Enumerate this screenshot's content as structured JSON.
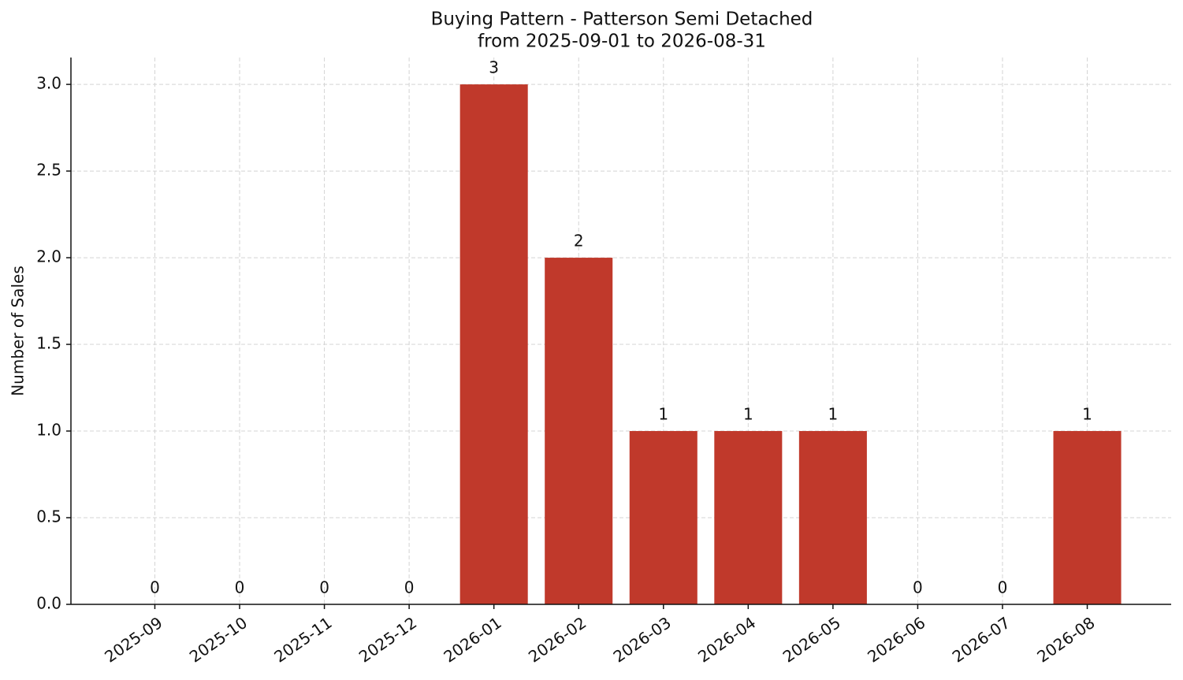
{
  "chart_data": {
    "type": "bar",
    "title": "Buying Pattern - Patterson Semi Detached",
    "subtitle": "from 2025-09-01 to 2026-08-31",
    "y_label": "Number of Sales",
    "categories": [
      "2025-09",
      "2025-10",
      "2025-11",
      "2025-12",
      "2026-01",
      "2026-02",
      "2026-03",
      "2026-04",
      "2026-05",
      "2026-06",
      "2026-07",
      "2026-08"
    ],
    "values": [
      0,
      0,
      0,
      0,
      3,
      2,
      1,
      1,
      1,
      0,
      0,
      1
    ],
    "color": "#c0392b",
    "ylim": [
      0,
      3.155
    ],
    "yticks": [
      {
        "value": 0,
        "label": "0.0"
      },
      0.5,
      {
        "value": 1,
        "label": "1.0"
      },
      1.5,
      {
        "value": 2,
        "label": "2.0"
      },
      2.5,
      {
        "value": 3,
        "label": "3.0"
      }
    ],
    "grid": true
  }
}
